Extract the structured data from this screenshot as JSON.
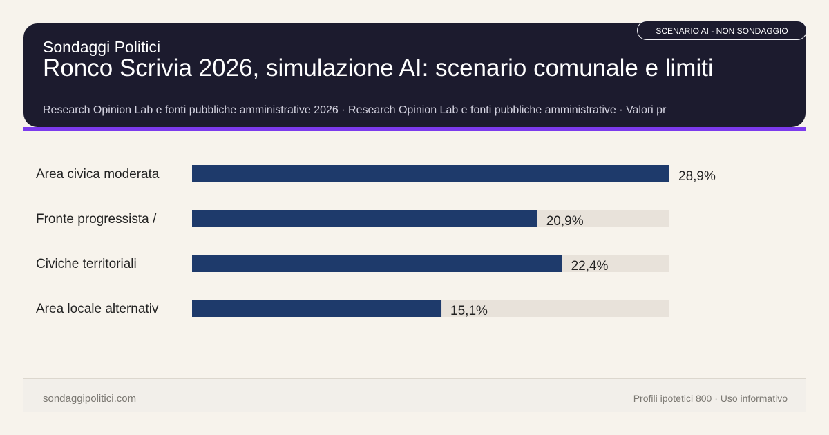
{
  "header": {
    "brand": "Sondaggi Politici",
    "title": "Ronco Scrivia 2026, simulazione AI: scenario comunale e limiti",
    "subtitle": "Research Opinion Lab e fonti pubbliche amministrative 2026 · Research Opinion Lab e fonti pubbliche amministrative · Valori pr",
    "badge": "SCENARIO AI - NON SONDAGGIO"
  },
  "colors": {
    "header_bg": "#1c1b2e",
    "accent": "#7c3aed",
    "bar": "#1e3a6b",
    "track": "#e8e2da",
    "background": "#f7f3ec"
  },
  "chart_data": {
    "type": "bar",
    "orientation": "horizontal",
    "categories": [
      "Area civica moderata",
      "Fronte progressista /",
      "Civiche territoriali",
      "Area locale alternativ"
    ],
    "values": [
      28.9,
      20.9,
      22.4,
      15.1
    ],
    "value_labels": [
      "28,9%",
      "20,9%",
      "22,4%",
      "15,1%"
    ],
    "xlim": [
      0,
      28.9
    ],
    "grid": false,
    "legend": "none"
  },
  "footer": {
    "site": "sondaggipolitici.com",
    "note": "Profili ipotetici 800 · Uso informativo"
  }
}
